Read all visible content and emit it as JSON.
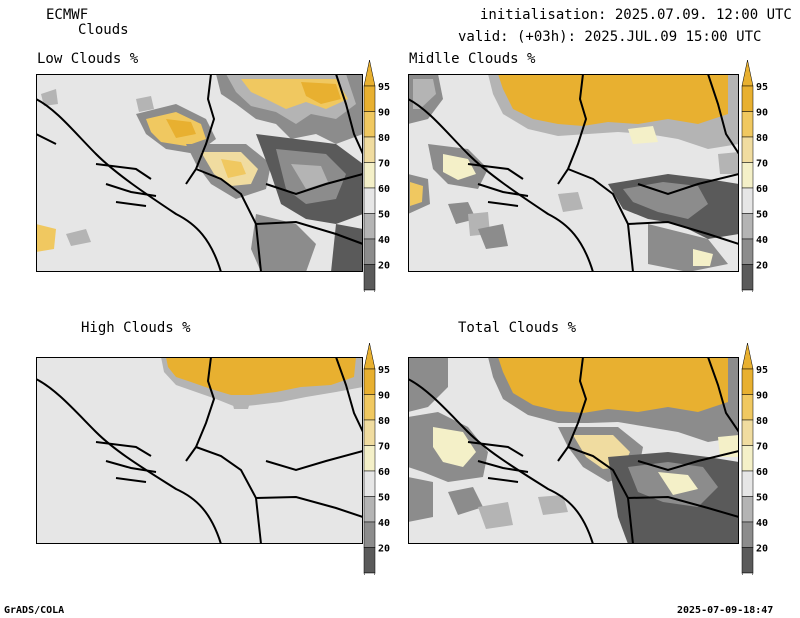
{
  "header": {
    "model": "ECMWF",
    "product": "Clouds",
    "initialisation": "initialisation: 2025.07.09. 12:00 UTC",
    "valid": "valid: (+03h): 2025.JUL.09 15:00 UTC"
  },
  "panels": [
    {
      "title": "Low Clouds %"
    },
    {
      "title": "Midlle Clouds %"
    },
    {
      "title": "High Clouds %"
    },
    {
      "title": "Total Clouds %"
    }
  ],
  "colorbar": {
    "levels": [
      "95",
      "90",
      "80",
      "70",
      "60",
      "50",
      "40",
      "20"
    ],
    "colors": {
      "c95": "#e8b030",
      "c90": "#f0c860",
      "c80": "#f0dca0",
      "c70": "#f4f0c8",
      "c60": "#e6e6e6",
      "c50": "#b4b4b4",
      "c40": "#8c8c8c",
      "c20": "#5a5a5a"
    }
  },
  "footer": {
    "left": "GrADS/COLA",
    "right": "2025-07-09-18:47"
  }
}
